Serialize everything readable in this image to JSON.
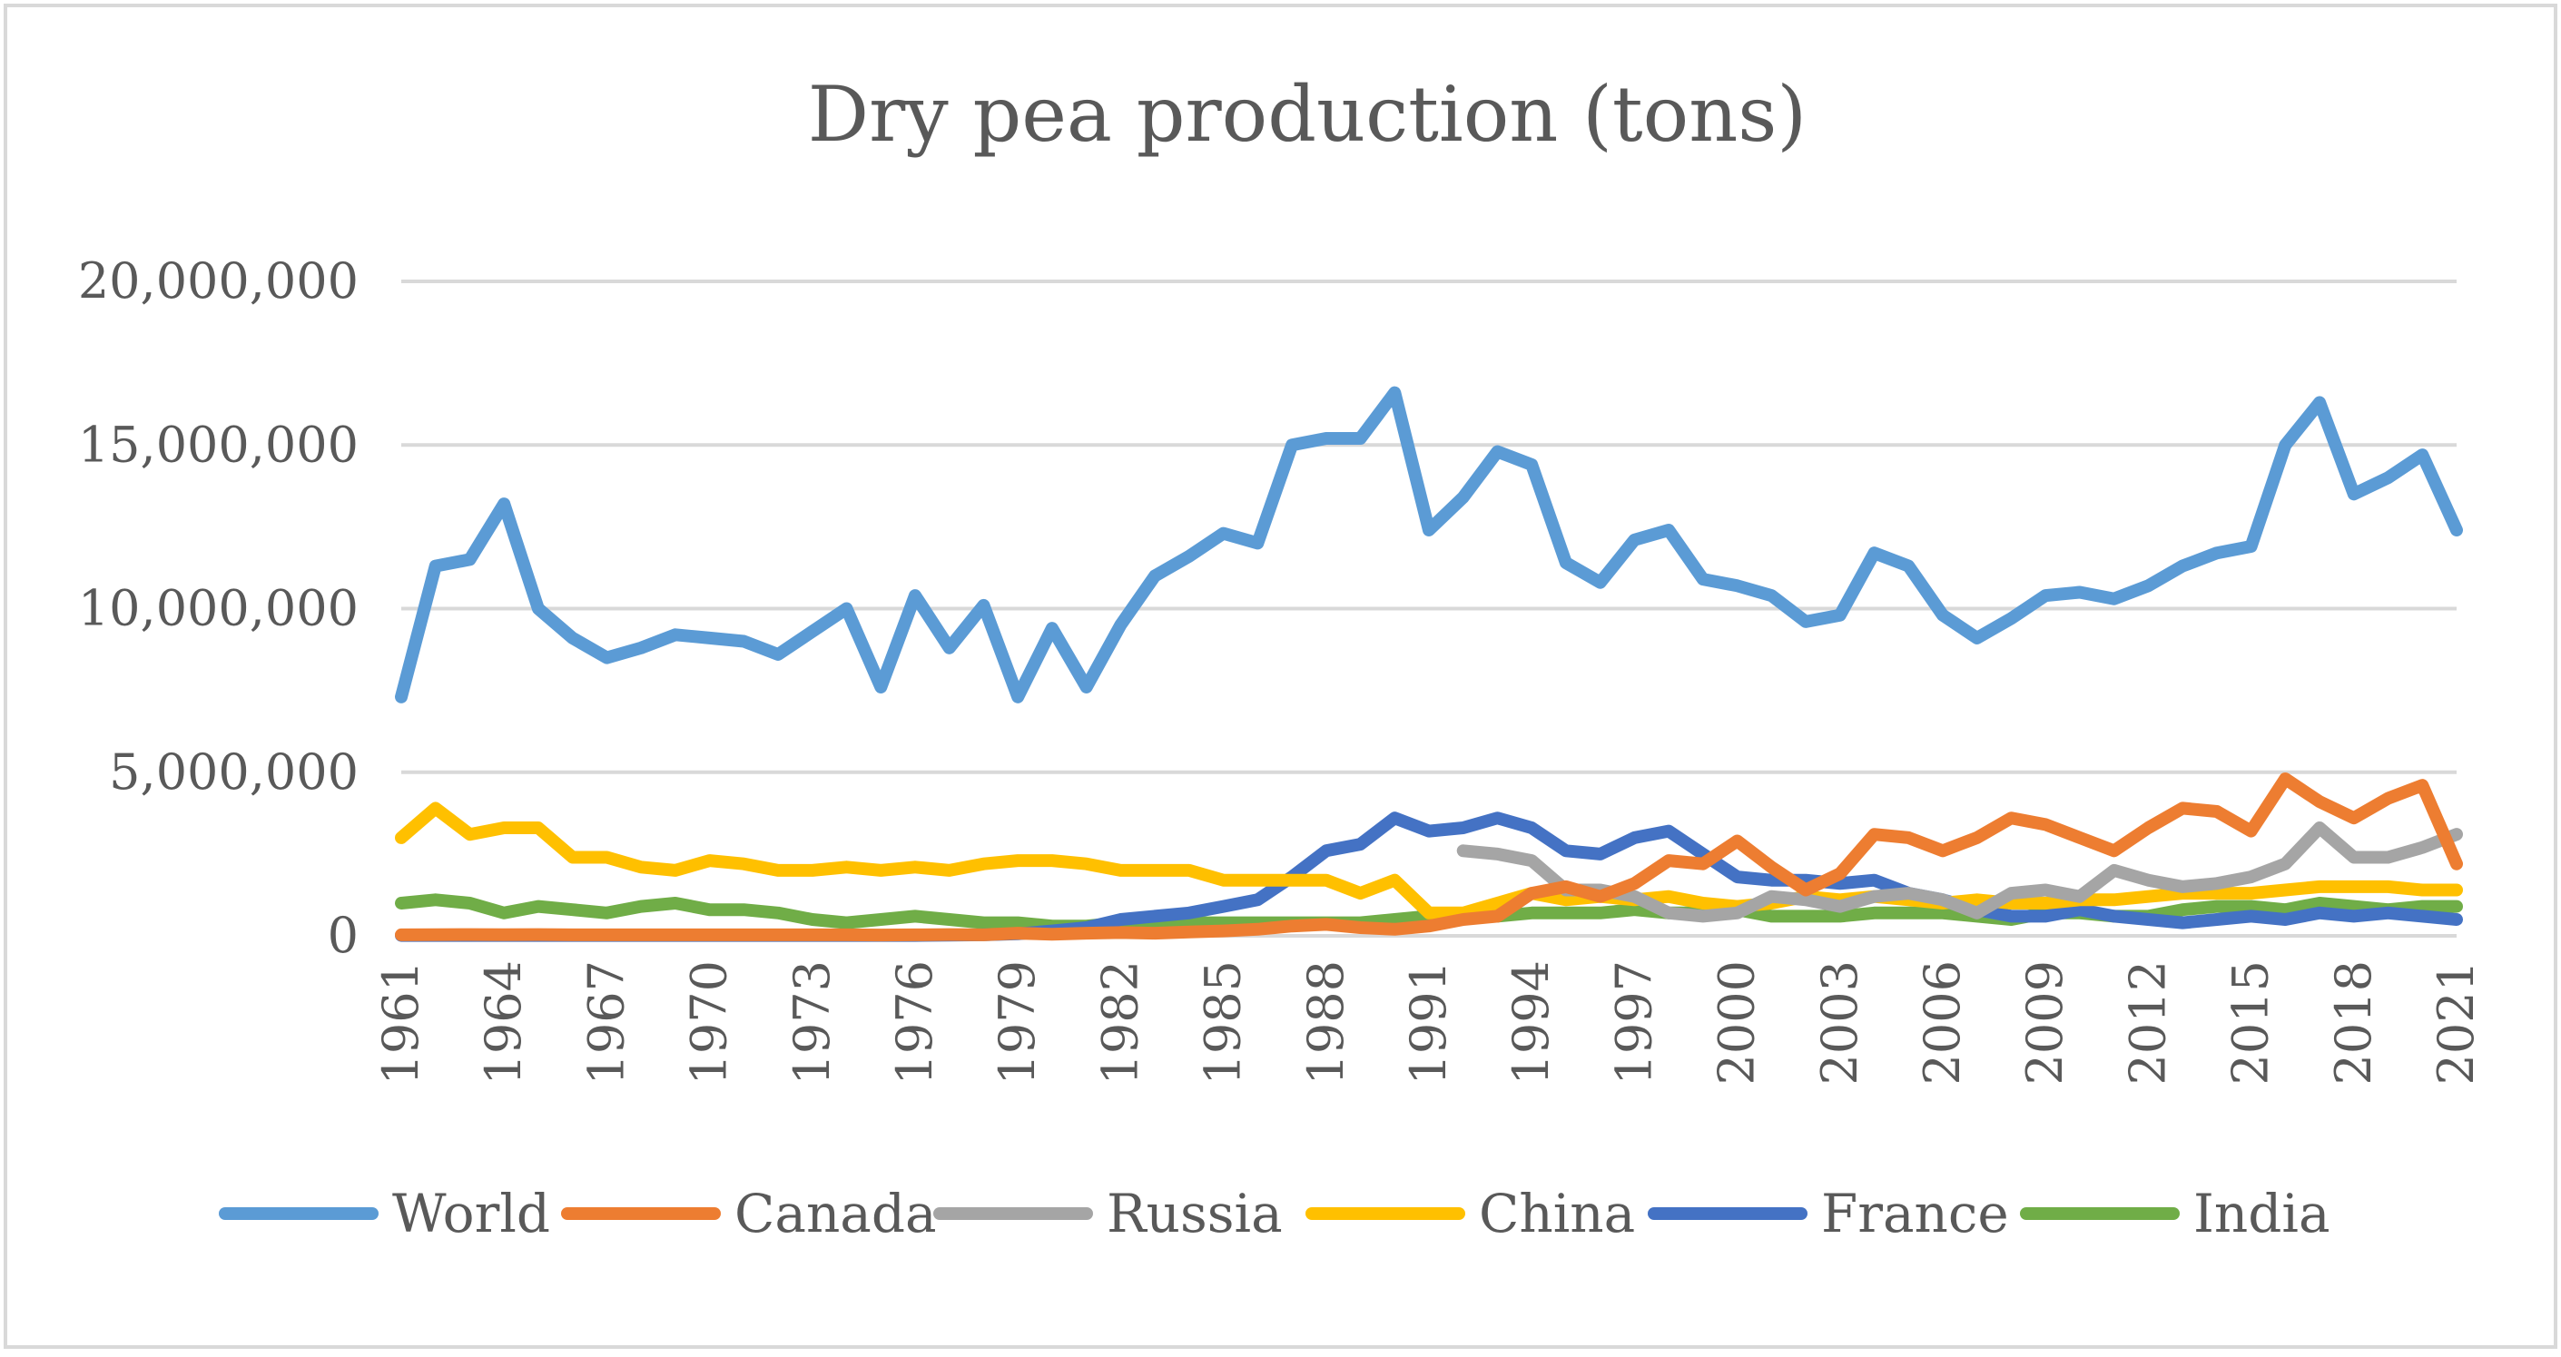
{
  "chart_data": {
    "type": "line",
    "title": "Dry pea production (tons)",
    "xlabel": "",
    "ylabel": "",
    "ylim": [
      0,
      20000000
    ],
    "yticks": [
      0,
      5000000,
      10000000,
      15000000,
      20000000
    ],
    "ytick_labels": [
      "0",
      "5,000,000",
      "10,000,000",
      "15,000,000",
      "20,000,000"
    ],
    "xlim": [
      1961,
      2021
    ],
    "xtick_labels": [
      "1961",
      "1964",
      "1967",
      "1970",
      "1973",
      "1976",
      "1979",
      "1982",
      "1985",
      "1988",
      "1991",
      "1994",
      "1997",
      "2000",
      "2003",
      "2006",
      "2009",
      "2012",
      "2015",
      "2018",
      "2021"
    ],
    "grid": true,
    "legend_position": "bottom",
    "series": [
      {
        "name": "World",
        "color": "#5B9BD5",
        "start_year": 1961,
        "values": [
          7300000,
          11300000,
          11500000,
          13200000,
          10000000,
          9100000,
          8500000,
          8800000,
          9200000,
          9100000,
          9000000,
          8600000,
          9300000,
          10000000,
          7600000,
          10400000,
          8800000,
          10100000,
          7300000,
          9400000,
          7600000,
          9500000,
          11000000,
          11600000,
          12300000,
          12000000,
          15000000,
          15200000,
          15200000,
          16600000,
          12400000,
          13400000,
          14800000,
          14400000,
          11400000,
          10800000,
          12100000,
          12400000,
          10900000,
          10700000,
          10400000,
          9600000,
          9800000,
          11700000,
          11300000,
          9800000,
          9100000,
          9700000,
          10400000,
          10500000,
          10300000,
          10700000,
          11300000,
          11700000,
          11900000,
          15000000,
          16300000,
          13500000,
          14000000,
          14700000,
          12400000
        ]
      },
      {
        "name": "Canada",
        "color": "#ED7D31",
        "start_year": 1961,
        "values": [
          30000,
          35000,
          40000,
          35000,
          40000,
          30000,
          30000,
          30000,
          30000,
          30000,
          30000,
          30000,
          30000,
          30000,
          25000,
          30000,
          40000,
          30000,
          80000,
          50000,
          80000,
          100000,
          80000,
          120000,
          150000,
          200000,
          300000,
          350000,
          250000,
          200000,
          300000,
          500000,
          600000,
          1300000,
          1500000,
          1200000,
          1600000,
          2300000,
          2200000,
          2900000,
          2100000,
          1400000,
          1900000,
          3100000,
          3000000,
          2600000,
          3000000,
          3600000,
          3400000,
          3000000,
          2600000,
          3300000,
          3900000,
          3800000,
          3200000,
          4800000,
          4100000,
          3600000,
          4200000,
          4600000,
          2200000
        ]
      },
      {
        "name": "Russia",
        "color": "#A5A5A5",
        "start_year": 1992,
        "values": [
          2600000,
          2500000,
          2300000,
          1400000,
          1400000,
          1200000,
          700000,
          600000,
          700000,
          1200000,
          1100000,
          900000,
          1200000,
          1300000,
          1100000,
          700000,
          1300000,
          1400000,
          1200000,
          2000000,
          1700000,
          1500000,
          1600000,
          1800000,
          2200000,
          3300000,
          2400000,
          2400000,
          2700000,
          3100000
        ]
      },
      {
        "name": "China",
        "color": "#FFC000",
        "start_year": 1961,
        "values": [
          3000000,
          3900000,
          3100000,
          3300000,
          3300000,
          2400000,
          2400000,
          2100000,
          2000000,
          2300000,
          2200000,
          2000000,
          2000000,
          2100000,
          2000000,
          2100000,
          2000000,
          2200000,
          2300000,
          2300000,
          2200000,
          2000000,
          2000000,
          2000000,
          1700000,
          1700000,
          1700000,
          1700000,
          1300000,
          1700000,
          700000,
          700000,
          1000000,
          1300000,
          1100000,
          1200000,
          1100000,
          1200000,
          1000000,
          900000,
          1000000,
          1200000,
          1100000,
          1200000,
          1100000,
          1000000,
          1100000,
          1000000,
          1000000,
          1100000,
          1100000,
          1200000,
          1300000,
          1300000,
          1300000,
          1400000,
          1500000,
          1500000,
          1500000,
          1400000,
          1400000
        ]
      },
      {
        "name": "France",
        "color": "#4472C4",
        "start_year": 1961,
        "values": [
          10000,
          10000,
          10000,
          10000,
          10000,
          10000,
          10000,
          10000,
          10000,
          10000,
          10000,
          10000,
          10000,
          10000,
          10000,
          10000,
          20000,
          30000,
          60000,
          150000,
          250000,
          500000,
          600000,
          700000,
          900000,
          1100000,
          1800000,
          2600000,
          2800000,
          3600000,
          3200000,
          3300000,
          3600000,
          3300000,
          2600000,
          2500000,
          3000000,
          3200000,
          2500000,
          1800000,
          1700000,
          1700000,
          1600000,
          1700000,
          1300000,
          1100000,
          800000,
          600000,
          600000,
          800000,
          600000,
          500000,
          400000,
          500000,
          600000,
          500000,
          700000,
          600000,
          700000,
          600000,
          500000
        ]
      },
      {
        "name": "India",
        "color": "#70AD47",
        "start_year": 1961,
        "values": [
          1000000,
          1100000,
          1000000,
          700000,
          900000,
          800000,
          700000,
          900000,
          1000000,
          800000,
          800000,
          700000,
          500000,
          400000,
          500000,
          600000,
          500000,
          400000,
          400000,
          300000,
          300000,
          400000,
          400000,
          400000,
          400000,
          400000,
          400000,
          400000,
          400000,
          500000,
          600000,
          600000,
          600000,
          700000,
          700000,
          700000,
          800000,
          700000,
          700000,
          800000,
          600000,
          600000,
          600000,
          700000,
          700000,
          700000,
          600000,
          500000,
          700000,
          700000,
          600000,
          600000,
          800000,
          900000,
          900000,
          800000,
          1000000,
          900000,
          800000,
          900000,
          900000
        ]
      }
    ]
  }
}
